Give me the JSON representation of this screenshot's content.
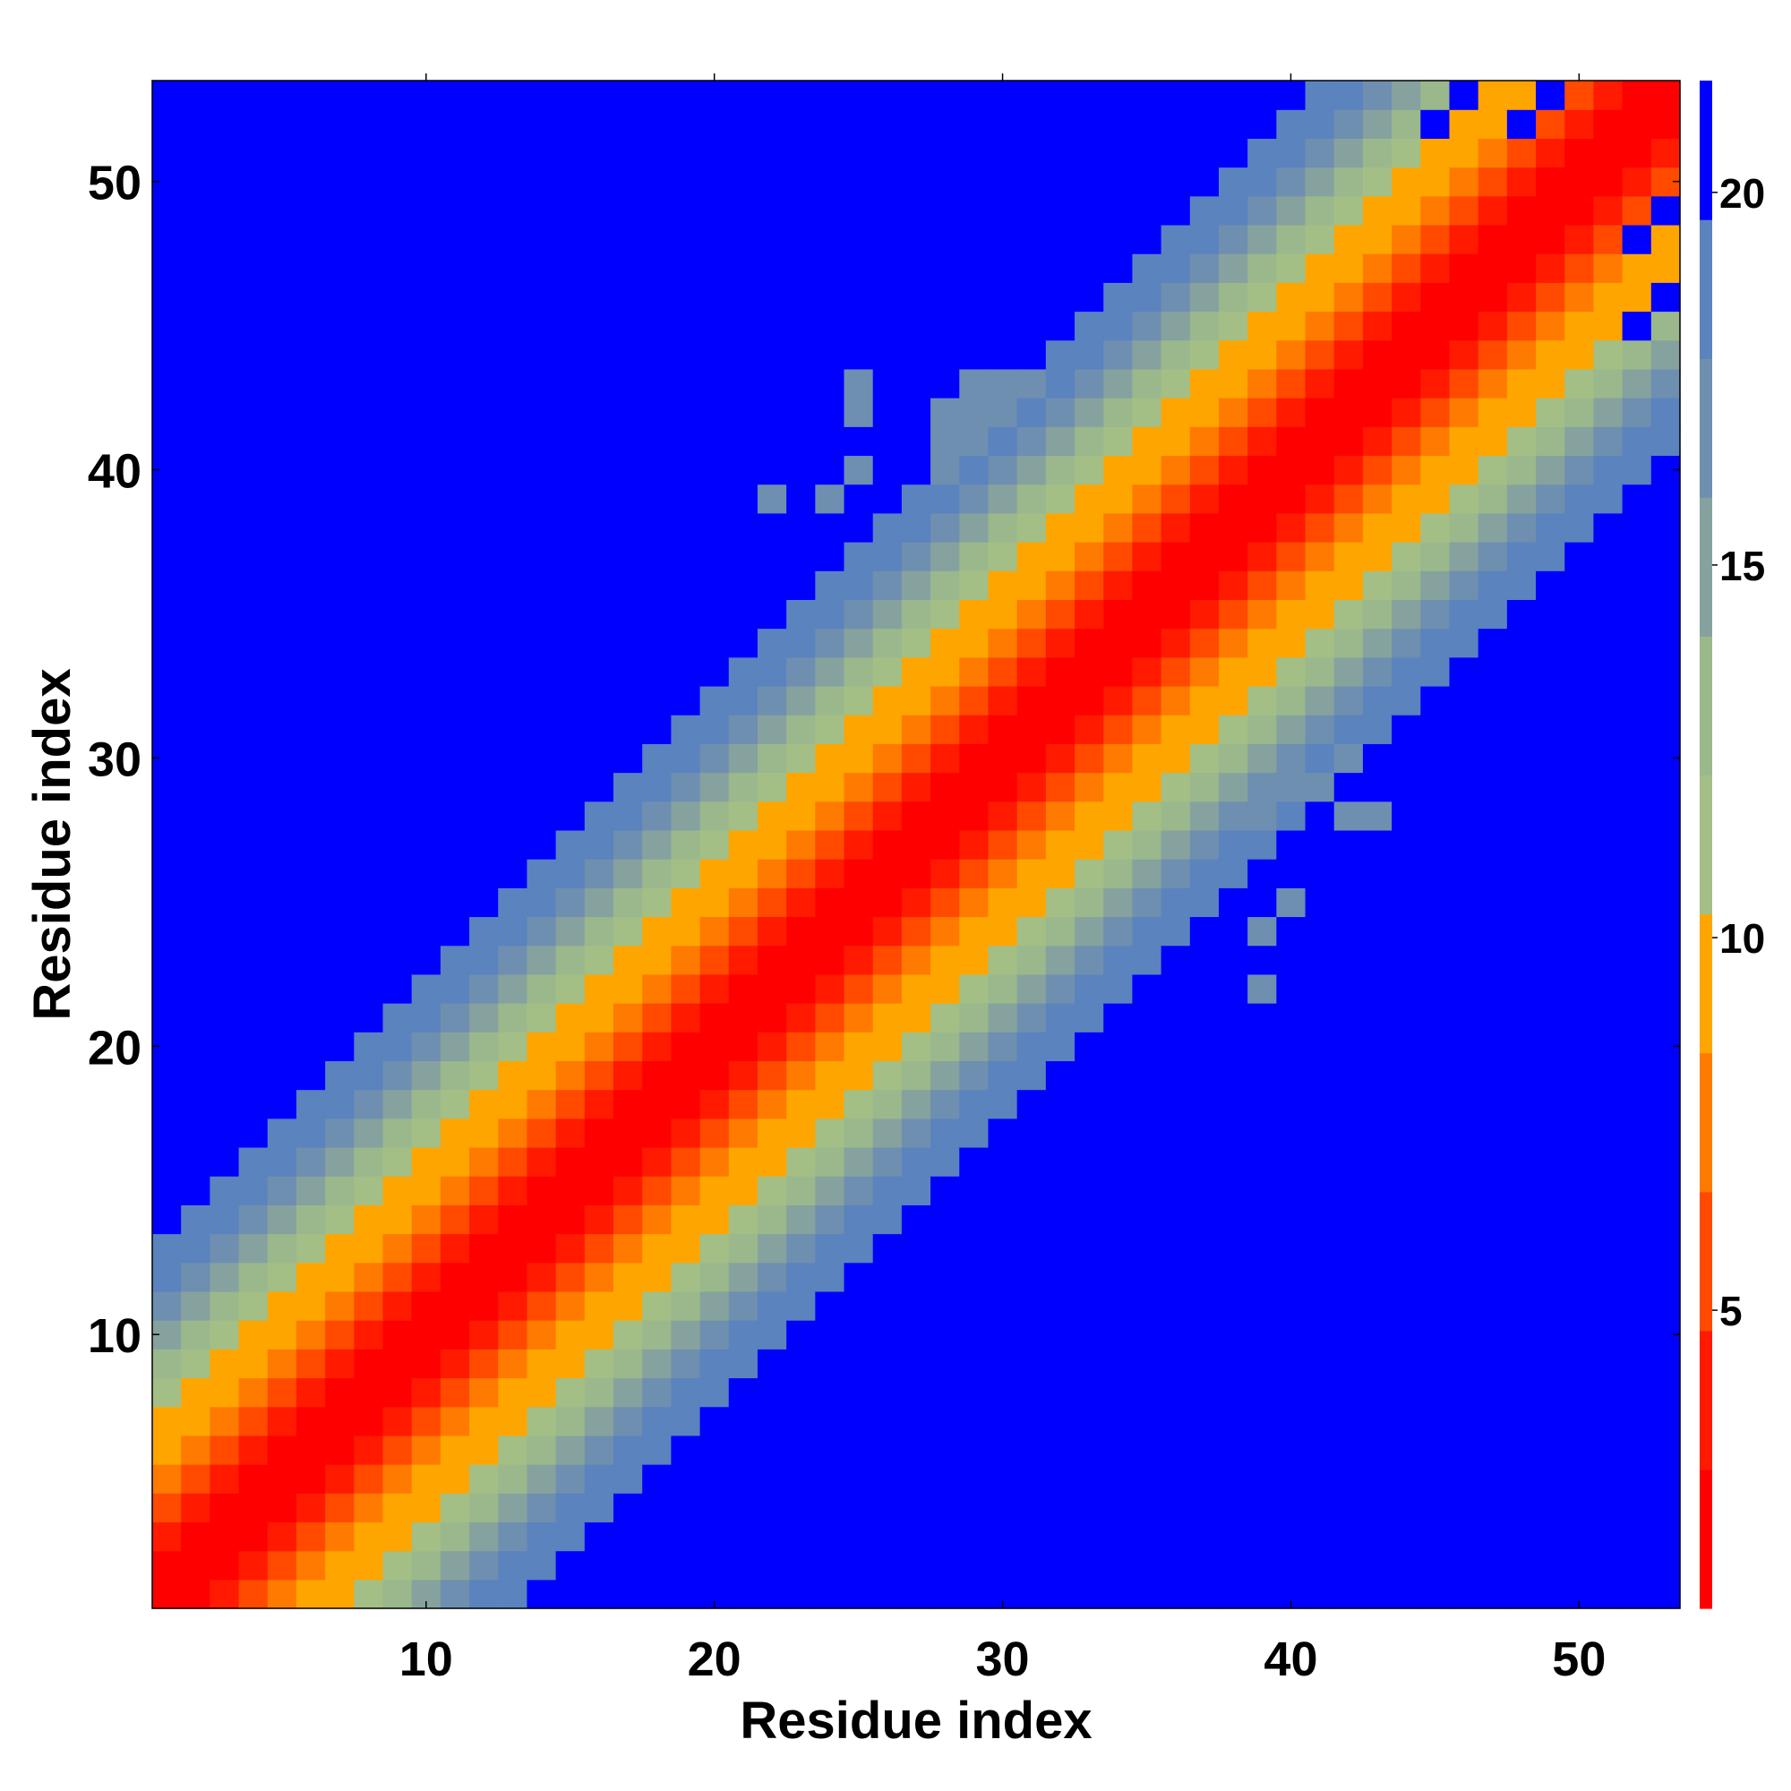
{
  "chart_data": {
    "type": "heatmap",
    "title": "",
    "xlabel": "Residue index",
    "ylabel": "Residue index",
    "n_residues": 53,
    "xlim": [
      0.5,
      53.5
    ],
    "ylim": [
      0.5,
      53.5
    ],
    "x_ticks": [
      10,
      20,
      30,
      40,
      50
    ],
    "y_ticks": [
      10,
      20,
      30,
      40,
      50
    ],
    "colorbar": {
      "range": [
        1,
        21.5
      ],
      "ticks": [
        5,
        10,
        15,
        20
      ],
      "position": "right",
      "colors": [
        "#ff0000",
        "#ff1a00",
        "#ff4a00",
        "#ff7a00",
        "#ffa500",
        "#a3bf86",
        "#9ab88c",
        "#86a29e",
        "#6e8fb0",
        "#5b83be",
        "#0000ff"
      ]
    },
    "value_scale": {
      "description": "Matrix value as a function of index offset d = |i - j| (d = 0 diagonal), saturating at the colorbar maximum",
      "offsets": [
        0,
        1,
        2,
        3,
        4,
        5,
        6,
        7,
        8,
        9,
        10,
        11,
        12,
        13
      ],
      "values": [
        1.5,
        2.0,
        3.5,
        6.0,
        7.5,
        9.8,
        10.3,
        11.2,
        13.0,
        14.8,
        16.3,
        17.8,
        18.8,
        21.5
      ]
    },
    "extra_cells": [
      {
        "i": 28,
        "j": 40,
        "value": 17.5
      },
      {
        "i": 28,
        "j": 41,
        "value": 17.5
      },
      {
        "i": 28,
        "j": 42,
        "value": 17.5
      },
      {
        "i": 29,
        "j": 41,
        "value": 17.5
      },
      {
        "i": 29,
        "j": 42,
        "value": 17.5
      },
      {
        "i": 29,
        "j": 43,
        "value": 17.5
      },
      {
        "i": 30,
        "j": 42,
        "value": 17.5
      },
      {
        "i": 30,
        "j": 43,
        "value": 17.5
      },
      {
        "i": 31,
        "j": 43,
        "value": 17.5
      },
      {
        "i": 25,
        "j": 40,
        "value": 17.5
      },
      {
        "i": 25,
        "j": 42,
        "value": 17.5
      },
      {
        "i": 25,
        "j": 43,
        "value": 17.5
      },
      {
        "i": 24,
        "j": 39,
        "value": 17.5
      },
      {
        "i": 22,
        "j": 39,
        "value": 17.5
      },
      {
        "i": 38,
        "j": 28,
        "value": 17.5
      },
      {
        "i": 39,
        "j": 28,
        "value": 17.5
      },
      {
        "i": 40,
        "j": 29,
        "value": 17.5
      },
      {
        "i": 41,
        "j": 29,
        "value": 17.5
      },
      {
        "i": 42,
        "j": 30,
        "value": 17.5
      },
      {
        "i": 42,
        "j": 28,
        "value": 17.5
      },
      {
        "i": 43,
        "j": 28,
        "value": 17.5
      },
      {
        "i": 40,
        "j": 25,
        "value": 17.5
      },
      {
        "i": 39,
        "j": 22,
        "value": 17.5
      },
      {
        "i": 39,
        "j": 24,
        "value": 17.5
      }
    ],
    "exception_cells": [
      {
        "i": 53,
        "j": 46,
        "value": 21.5
      },
      {
        "i": 53,
        "j": 49,
        "value": 21.5
      },
      {
        "i": 52,
        "j": 45,
        "value": 21.5
      },
      {
        "i": 52,
        "j": 48,
        "value": 21.5
      },
      {
        "i": 49,
        "j": 53,
        "value": 21.5
      },
      {
        "i": 48,
        "j": 52,
        "value": 21.5
      },
      {
        "i": 46,
        "j": 53,
        "value": 21.5
      },
      {
        "i": 45,
        "j": 52,
        "value": 21.5
      }
    ]
  }
}
